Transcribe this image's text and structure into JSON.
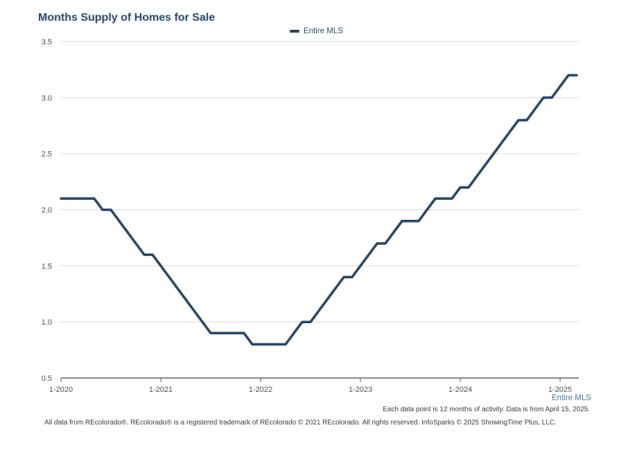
{
  "chart_data": {
    "type": "line",
    "title": "Months Supply of Homes for Sale",
    "legend": {
      "placement": "top-center",
      "entries": [
        "Entire MLS"
      ]
    },
    "series_color": "#1c3c5a",
    "grid": true,
    "ylim": [
      0.5,
      3.5
    ],
    "yticks": [
      0.5,
      1.0,
      1.5,
      2.0,
      2.5,
      3.0,
      3.5
    ],
    "ytick_labels": [
      "0.5",
      "1.0",
      "1.5",
      "2.0",
      "2.5",
      "3.0",
      "3.5"
    ],
    "xticks": [
      {
        "label": "1-2020",
        "month": 0
      },
      {
        "label": "1-2021",
        "month": 12
      },
      {
        "label": "1-2022",
        "month": 24
      },
      {
        "label": "1-2023",
        "month": 36
      },
      {
        "label": "1-2024",
        "month": 48
      },
      {
        "label": "1-2025",
        "month": 60
      }
    ],
    "series": [
      {
        "name": "Entire MLS",
        "points": [
          [
            "2020-01",
            2.1
          ],
          [
            "2020-02",
            2.1
          ],
          [
            "2020-03",
            2.1
          ],
          [
            "2020-04",
            2.1
          ],
          [
            "2020-05",
            2.1
          ],
          [
            "2020-06",
            2.0
          ],
          [
            "2020-07",
            2.0
          ],
          [
            "2020-08",
            1.9
          ],
          [
            "2020-09",
            1.8
          ],
          [
            "2020-10",
            1.7
          ],
          [
            "2020-11",
            1.6
          ],
          [
            "2020-12",
            1.6
          ],
          [
            "2021-01",
            1.5
          ],
          [
            "2021-02",
            1.4
          ],
          [
            "2021-03",
            1.3
          ],
          [
            "2021-04",
            1.2
          ],
          [
            "2021-05",
            1.1
          ],
          [
            "2021-06",
            1.0
          ],
          [
            "2021-07",
            0.9
          ],
          [
            "2021-08",
            0.9
          ],
          [
            "2021-09",
            0.9
          ],
          [
            "2021-10",
            0.9
          ],
          [
            "2021-11",
            0.9
          ],
          [
            "2021-12",
            0.8
          ],
          [
            "2022-01",
            0.8
          ],
          [
            "2022-02",
            0.8
          ],
          [
            "2022-03",
            0.8
          ],
          [
            "2022-04",
            0.8
          ],
          [
            "2022-05",
            0.9
          ],
          [
            "2022-06",
            1.0
          ],
          [
            "2022-07",
            1.0
          ],
          [
            "2022-08",
            1.1
          ],
          [
            "2022-09",
            1.2
          ],
          [
            "2022-10",
            1.3
          ],
          [
            "2022-11",
            1.4
          ],
          [
            "2022-12",
            1.4
          ],
          [
            "2023-01",
            1.5
          ],
          [
            "2023-02",
            1.6
          ],
          [
            "2023-03",
            1.7
          ],
          [
            "2023-04",
            1.7
          ],
          [
            "2023-05",
            1.8
          ],
          [
            "2023-06",
            1.9
          ],
          [
            "2023-07",
            1.9
          ],
          [
            "2023-08",
            1.9
          ],
          [
            "2023-09",
            2.0
          ],
          [
            "2023-10",
            2.1
          ],
          [
            "2023-11",
            2.1
          ],
          [
            "2023-12",
            2.1
          ],
          [
            "2024-01",
            2.2
          ],
          [
            "2024-02",
            2.2
          ],
          [
            "2024-03",
            2.3
          ],
          [
            "2024-04",
            2.4
          ],
          [
            "2024-05",
            2.5
          ],
          [
            "2024-06",
            2.6
          ],
          [
            "2024-07",
            2.7
          ],
          [
            "2024-08",
            2.8
          ],
          [
            "2024-09",
            2.8
          ],
          [
            "2024-10",
            2.9
          ],
          [
            "2024-11",
            3.0
          ],
          [
            "2024-12",
            3.0
          ],
          [
            "2025-01",
            3.1
          ],
          [
            "2025-02",
            3.2
          ],
          [
            "2025-03",
            3.2
          ]
        ]
      }
    ]
  },
  "series_tag": "Entire MLS",
  "note": "Each data point is 12 months of activity. Data is from April 15, 2025.",
  "footer": "All data from REcolorado®. REcolorado® is a registered trademark of REcolorado © 2021 REcolorado. All rights reserved. InfoSparks © 2025 ShowingTime Plus, LLC."
}
